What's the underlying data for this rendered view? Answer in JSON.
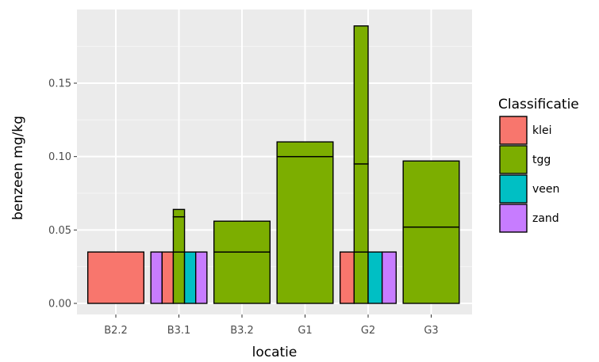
{
  "chart_data": {
    "type": "bar",
    "bar_layout": "dodge",
    "xlabel": "locatie",
    "ylabel": "benzeen mg/kg",
    "ylim": [
      0,
      0.198
    ],
    "y_ticks": [
      0.0,
      0.05,
      0.1,
      0.15
    ],
    "y_tick_labels": [
      "0.00",
      "0.05",
      "0.10",
      "0.15"
    ],
    "categories": [
      "B2.2",
      "B3.1",
      "B3.2",
      "G1",
      "G2",
      "G3"
    ],
    "grid": true,
    "legend": {
      "title": "Classificatie",
      "position": "right",
      "entries": [
        {
          "name": "klei",
          "color": "#F8766D"
        },
        {
          "name": "tgg",
          "color": "#7CAE00"
        },
        {
          "name": "veen",
          "color": "#00BFC4"
        },
        {
          "name": "zand",
          "color": "#C77CFF"
        }
      ]
    },
    "bars": [
      {
        "category": "B2.2",
        "slot": 0,
        "slots": 1,
        "class": "klei",
        "segments": [
          0.035
        ]
      },
      {
        "category": "B3.1",
        "slot": 0,
        "slots": 5,
        "class": "zand",
        "segments": [
          0.035
        ]
      },
      {
        "category": "B3.1",
        "slot": 1,
        "slots": 5,
        "class": "klei",
        "segments": [
          0.035
        ]
      },
      {
        "category": "B3.1",
        "slot": 2,
        "slots": 5,
        "class": "tgg",
        "segments": [
          0.035,
          0.024,
          0.005
        ]
      },
      {
        "category": "B3.1",
        "slot": 3,
        "slots": 5,
        "class": "veen",
        "segments": [
          0.035
        ]
      },
      {
        "category": "B3.1",
        "slot": 4,
        "slots": 5,
        "class": "zand",
        "segments": [
          0.035
        ]
      },
      {
        "category": "B3.2",
        "slot": 0,
        "slots": 1,
        "class": "tgg",
        "segments": [
          0.035,
          0.021
        ]
      },
      {
        "category": "G1",
        "slot": 0,
        "slots": 1,
        "class": "tgg",
        "segments": [
          0.1,
          0.01
        ]
      },
      {
        "category": "G2",
        "slot": 0,
        "slots": 4,
        "class": "klei",
        "segments": [
          0.035
        ]
      },
      {
        "category": "G2",
        "slot": 1,
        "slots": 4,
        "class": "tgg",
        "segments": [
          0.035,
          0.06,
          0.094
        ]
      },
      {
        "category": "G2",
        "slot": 2,
        "slots": 4,
        "class": "veen",
        "segments": [
          0.035
        ]
      },
      {
        "category": "G2",
        "slot": 3,
        "slots": 4,
        "class": "zand",
        "segments": [
          0.035
        ]
      },
      {
        "category": "G3",
        "slot": 0,
        "slots": 1,
        "class": "tgg",
        "segments": [
          0.052,
          0.045
        ]
      }
    ]
  }
}
